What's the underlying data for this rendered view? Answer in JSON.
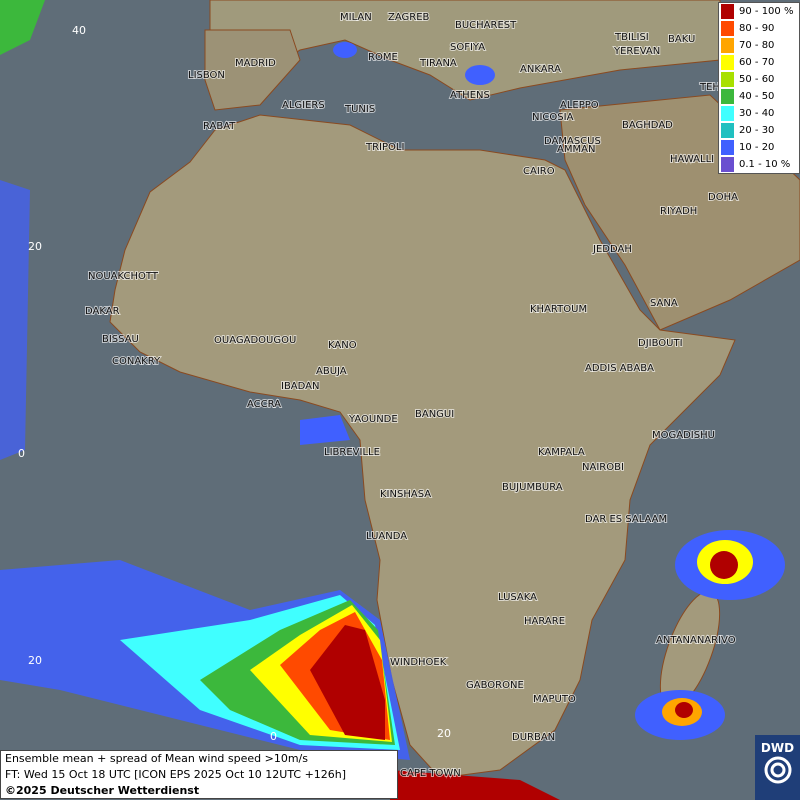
{
  "legend": {
    "items": [
      {
        "label": "90 - 100 %",
        "color": "#b00000"
      },
      {
        "label": "80 - 90",
        "color": "#ff4a00"
      },
      {
        "label": "70 - 80",
        "color": "#ffa500"
      },
      {
        "label": "60 - 70",
        "color": "#ffff00"
      },
      {
        "label": "50 - 60",
        "color": "#a8e000"
      },
      {
        "label": "40 - 50",
        "color": "#3cb83c"
      },
      {
        "label": "30 - 40",
        "color": "#40ffff"
      },
      {
        "label": "20 - 30",
        "color": "#20c0c0"
      },
      {
        "label": "10 - 20",
        "color": "#4060ff"
      },
      {
        "label": "0.1 - 10 %",
        "color": "#6a4fd0"
      }
    ]
  },
  "caption": {
    "line1": "Ensemble mean + spread of Mean wind speed >10m/s",
    "line2": "FT: Wed 15 Oct 18 UTC [ICON EPS 2025 Oct 10 12UTC +126h]",
    "line3": "©2025 Deutscher Wetterdienst"
  },
  "logo": "DWD",
  "grid_labels": {
    "lat": [
      "40",
      "20",
      "0",
      "20"
    ],
    "lon": [
      "0",
      "20"
    ]
  },
  "cities": [
    "MILAN",
    "ZAGREB",
    "BUCHAREST",
    "SOFIYA",
    "ROME",
    "TIRANA",
    "ANKARA",
    "TBILISI",
    "YEREVAN",
    "BAKU",
    "LISBON",
    "MADRID",
    "ALGIERS",
    "TUNIS",
    "ATHENS",
    "ALEPPO",
    "RABAT",
    "NICOSIA",
    "BAGHDAD",
    "TEHRA",
    "TRIPOLI",
    "DAMASCUS",
    "AMMAN",
    "CAIRO",
    "HAWALLI",
    "DOHA",
    "RIYADH",
    "JEDDAH",
    "NOUAKCHOTT",
    "DAKAR",
    "BISSAU",
    "CONAKRY",
    "OUAGADOUGOU",
    "KANO",
    "ABUJA",
    "IBADAN",
    "ACCRA",
    "KHARTOUM",
    "SANA",
    "DJIBOUTI",
    "ADDIS ABABA",
    "YAOUNDE",
    "BANGUI",
    "LIBREVILLE",
    "MOGADISHU",
    "KAMPALA",
    "NAIROBI",
    "KINSHASA",
    "BUJUMBURA",
    "DAR ES SALAAM",
    "LUANDA",
    "LUSAKA",
    "HARARE",
    "ANTANANARIVO",
    "WINDHOEK",
    "GABORONE",
    "MAPUTO",
    "DURBAN",
    "CAPE TOWN"
  ]
}
